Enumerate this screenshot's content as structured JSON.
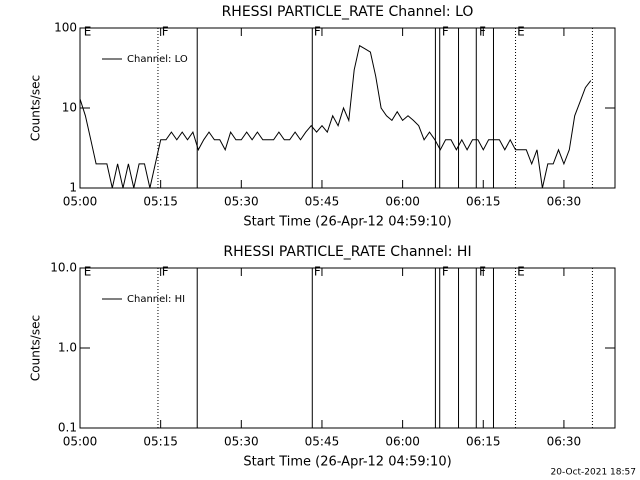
{
  "chart_data": [
    {
      "type": "line",
      "title": "RHESSI PARTICLE_RATE Channel: LO",
      "xlabel": "Start Time (26-Apr-12 04:59:10)",
      "ylabel": "Counts/sec",
      "log_y": true,
      "ylim": [
        1,
        100
      ],
      "yticks": [
        1,
        10,
        100
      ],
      "xlim": [
        0,
        99.5
      ],
      "xticks": [
        {
          "value": 0,
          "label": "05:00"
        },
        {
          "value": 15,
          "label": "05:15"
        },
        {
          "value": 30,
          "label": "05:30"
        },
        {
          "value": 45,
          "label": "05:45"
        },
        {
          "value": 60,
          "label": "06:00"
        },
        {
          "value": 75,
          "label": "06:15"
        },
        {
          "value": 90,
          "label": "06:30"
        }
      ],
      "series": [
        {
          "name": "Channel: LO",
          "color": "#000000",
          "x": [
            0,
            1,
            2,
            3,
            4,
            5,
            6,
            7,
            8,
            9,
            10,
            11,
            12,
            13,
            14,
            15,
            16,
            17,
            18,
            19,
            20,
            21,
            22,
            23,
            24,
            25,
            26,
            27,
            28,
            29,
            30,
            31,
            32,
            33,
            34,
            35,
            36,
            37,
            38,
            39,
            40,
            41,
            42,
            43,
            44,
            45,
            46,
            47,
            48,
            49,
            50,
            51,
            52,
            53,
            54,
            55,
            56,
            57,
            58,
            59,
            60,
            61,
            62,
            63,
            64,
            65,
            66,
            67,
            68,
            69,
            70,
            71,
            72,
            73,
            74,
            75,
            76,
            77,
            78,
            79,
            80,
            81,
            82,
            83,
            84,
            85,
            86,
            87,
            88,
            89,
            90,
            91,
            92,
            93,
            94,
            95
          ],
          "values": [
            13,
            8,
            4,
            2,
            2,
            2,
            1,
            2,
            1,
            2,
            1,
            2,
            2,
            1,
            2,
            4,
            4,
            5,
            4,
            5,
            4,
            5,
            3,
            4,
            5,
            4,
            4,
            3,
            5,
            4,
            4,
            5,
            4,
            5,
            4,
            4,
            4,
            5,
            4,
            4,
            5,
            4,
            5,
            6,
            5,
            6,
            5,
            8,
            6,
            10,
            7,
            30,
            60,
            55,
            50,
            25,
            10,
            8,
            7,
            9,
            7,
            8,
            7,
            6,
            4,
            5,
            4,
            3,
            4,
            4,
            3,
            4,
            3,
            4,
            4,
            3,
            4,
            4,
            4,
            3,
            4,
            3,
            3,
            3,
            2,
            3,
            1,
            2,
            2,
            3,
            2,
            3,
            8,
            12,
            18,
            22
          ]
        }
      ],
      "events": [
        {
          "x": 14.5,
          "style": "dotted"
        },
        {
          "x": 21.8,
          "style": "solid"
        },
        {
          "x": 43.2,
          "style": "solid"
        },
        {
          "x": 66.1,
          "style": "solid"
        },
        {
          "x": 66.9,
          "style": "solid"
        },
        {
          "x": 70.4,
          "style": "solid"
        },
        {
          "x": 73.7,
          "style": "solid"
        },
        {
          "x": 76.9,
          "style": "solid"
        },
        {
          "x": 81,
          "style": "dotted"
        },
        {
          "x": 95.3,
          "style": "dotted"
        }
      ],
      "event_labels": [
        {
          "x": 0.7,
          "text": "E"
        },
        {
          "x": 15.2,
          "text": "F"
        },
        {
          "x": 43.5,
          "text": "F"
        },
        {
          "x": 67.3,
          "text": "F"
        },
        {
          "x": 74.2,
          "text": "F"
        },
        {
          "x": 81.3,
          "text": "E"
        }
      ]
    },
    {
      "type": "line",
      "title": "RHESSI PARTICLE_RATE Channel: HI",
      "xlabel": "Start Time (26-Apr-12 04:59:10)",
      "ylabel": "Counts/sec",
      "log_y": true,
      "ylim": [
        0.1,
        10
      ],
      "yticks": [
        0.1,
        {
          "value": 1,
          "label": "1.0"
        },
        {
          "value": 10,
          "label": "10.0"
        }
      ],
      "xlim": [
        0,
        99.5
      ],
      "xticks": [
        {
          "value": 0,
          "label": "05:00"
        },
        {
          "value": 15,
          "label": "05:15"
        },
        {
          "value": 30,
          "label": "05:30"
        },
        {
          "value": 45,
          "label": "05:45"
        },
        {
          "value": 60,
          "label": "06:00"
        },
        {
          "value": 75,
          "label": "06:15"
        },
        {
          "value": 90,
          "label": "06:30"
        }
      ],
      "series": [
        {
          "name": "Channel: HI",
          "color": "#000000",
          "x": [],
          "values": []
        }
      ],
      "events": [
        {
          "x": 14.5,
          "style": "dotted"
        },
        {
          "x": 21.8,
          "style": "solid"
        },
        {
          "x": 43.2,
          "style": "solid"
        },
        {
          "x": 66.1,
          "style": "solid"
        },
        {
          "x": 66.9,
          "style": "solid"
        },
        {
          "x": 70.4,
          "style": "solid"
        },
        {
          "x": 73.7,
          "style": "solid"
        },
        {
          "x": 76.9,
          "style": "solid"
        },
        {
          "x": 81,
          "style": "dotted"
        },
        {
          "x": 95.3,
          "style": "dotted"
        }
      ],
      "event_labels": [
        {
          "x": 0.7,
          "text": "E"
        },
        {
          "x": 15.2,
          "text": "F"
        },
        {
          "x": 43.5,
          "text": "F"
        },
        {
          "x": 67.3,
          "text": "F"
        },
        {
          "x": 74.2,
          "text": "F"
        },
        {
          "x": 81.3,
          "text": "E"
        }
      ]
    }
  ],
  "footer": "20-Oct-2021 18:57"
}
